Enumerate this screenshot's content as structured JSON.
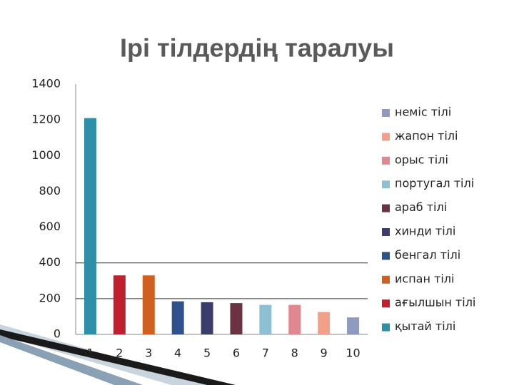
{
  "chart_data": {
    "type": "bar",
    "title": "Ірі тілдердің таралуы",
    "categories": [
      "1",
      "2",
      "3",
      "4",
      "5",
      "6",
      "7",
      "8",
      "9",
      "10"
    ],
    "series": [
      {
        "name": "қытай тілі",
        "color": "#2e8fa8",
        "values": [
          1210,
          null,
          null,
          null,
          null,
          null,
          null,
          null,
          null,
          null
        ]
      },
      {
        "name": "ағылшын тілі",
        "color": "#c0202e",
        "values": [
          null,
          330,
          null,
          null,
          null,
          null,
          null,
          null,
          null,
          null
        ]
      },
      {
        "name": "испан тілі",
        "color": "#d0601e",
        "values": [
          null,
          null,
          330,
          null,
          null,
          null,
          null,
          null,
          null,
          null
        ]
      },
      {
        "name": "бенгал тілі",
        "color": "#2f528c",
        "values": [
          null,
          null,
          null,
          185,
          null,
          null,
          null,
          null,
          null,
          null
        ]
      },
      {
        "name": "хинди тілі",
        "color": "#3b3d6b",
        "values": [
          null,
          null,
          null,
          null,
          180,
          null,
          null,
          null,
          null,
          null
        ]
      },
      {
        "name": "араб тілі",
        "color": "#6b3242",
        "values": [
          null,
          null,
          null,
          null,
          null,
          175,
          null,
          null,
          null,
          null
        ]
      },
      {
        "name": "португал тілі",
        "color": "#8ec0d4",
        "values": [
          null,
          null,
          null,
          null,
          null,
          null,
          165,
          null,
          null,
          null
        ]
      },
      {
        "name": "орыс тілі",
        "color": "#e08890",
        "values": [
          null,
          null,
          null,
          null,
          null,
          null,
          null,
          165,
          null,
          null
        ]
      },
      {
        "name": "жапон тілі",
        "color": "#f2a088",
        "values": [
          null,
          null,
          null,
          null,
          null,
          null,
          null,
          null,
          125,
          null
        ]
      },
      {
        "name": "неміс тілі",
        "color": "#8e9ac0",
        "values": [
          null,
          null,
          null,
          null,
          null,
          null,
          null,
          null,
          null,
          95
        ]
      }
    ],
    "ylim": [
      0,
      1400
    ],
    "yticks": [
      0,
      200,
      400,
      600,
      800,
      1000,
      1200,
      1400
    ],
    "gridlines": [
      200,
      400
    ]
  }
}
